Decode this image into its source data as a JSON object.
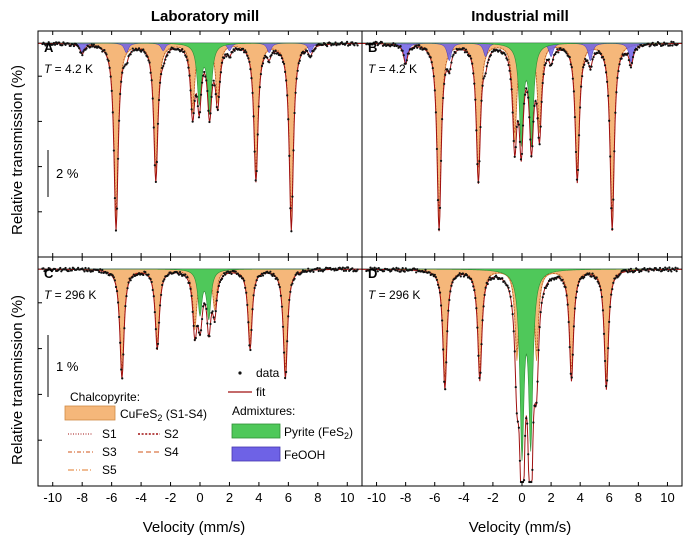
{
  "figure": {
    "col_titles": [
      "Laboratory mill",
      "Industrial mill"
    ],
    "ylabel": "Relative transmission (%)",
    "xlabel": "Velocity (mm/s)",
    "xticks": [
      -10,
      -8,
      -6,
      -4,
      -2,
      0,
      2,
      4,
      6,
      8,
      10
    ],
    "scalebars": [
      "2 %",
      "1 %"
    ],
    "temp_prefix": "T",
    "colors": {
      "chalcopyrite": "#f5b77a",
      "pyrite": "#4fc85a",
      "feooh": "#6e62e6",
      "fit": "#a01010",
      "data": "#111111"
    }
  },
  "legend": {
    "chalcopyrite_title": "Chalcopyrite:",
    "cufes2": "CuFeS",
    "cufes2_sub": "2",
    "cufes2_suffix": " (S1-S4)",
    "s1": "S1",
    "s2": "S2",
    "s3": "S3",
    "s4": "S4",
    "s5": "S5",
    "data": "data",
    "fit": "fit",
    "admixtures_title": "Admixtures:",
    "pyrite": "Pyrite (FeS",
    "pyrite_sub": "2",
    "pyrite_suffix": ")",
    "feooh": "FeOOH"
  },
  "chart_data": [
    {
      "type": "line",
      "panel": "A",
      "temperature": "= 4.2 K",
      "xlim": [
        -11,
        11
      ],
      "chalcopyrite_lines": [
        -5.7,
        -3.0,
        -0.5,
        1.2,
        3.8,
        6.2
      ],
      "chalcopyrite_depth": [
        0.95,
        0.7,
        0.35,
        0.3,
        0.7,
        0.95
      ],
      "pyrite_lines": [
        -0.05,
        0.65
      ],
      "pyrite_depth": [
        0.3,
        0.35
      ],
      "feooh_lines": [
        -8.0,
        -5.0,
        -2.5,
        2.0,
        4.7,
        7.5
      ],
      "feooh_depth": [
        0.05,
        0.05,
        0.04,
        0.04,
        0.05,
        0.05
      ]
    },
    {
      "type": "line",
      "panel": "B",
      "temperature": "= 4.2 K",
      "xlim": [
        -11,
        11
      ],
      "chalcopyrite_lines": [
        -5.7,
        -3.0,
        -0.5,
        1.2,
        3.8,
        6.2
      ],
      "chalcopyrite_depth": [
        0.95,
        0.7,
        0.5,
        0.45,
        0.7,
        0.95
      ],
      "pyrite_lines": [
        -0.05,
        0.65
      ],
      "pyrite_depth": [
        0.5,
        0.5
      ],
      "feooh_lines": [
        -8.0,
        -5.0,
        -2.5,
        2.0,
        4.7,
        7.5
      ],
      "feooh_depth": [
        0.1,
        0.09,
        0.07,
        0.07,
        0.09,
        0.1
      ]
    },
    {
      "type": "line",
      "panel": "C",
      "temperature": "= 296 K",
      "xlim": [
        -11,
        11
      ],
      "chalcopyrite_lines": [
        -5.3,
        -2.9,
        -0.35,
        1.0,
        3.4,
        5.8
      ],
      "chalcopyrite_depth": [
        0.55,
        0.4,
        0.3,
        0.2,
        0.4,
        0.55
      ],
      "pyrite_lines": [
        0.0,
        0.6
      ],
      "pyrite_depth": [
        0.22,
        0.24
      ],
      "feooh_lines": [
        0.1,
        0.6
      ],
      "feooh_depth": [
        0.04,
        0.04
      ]
    },
    {
      "type": "line",
      "panel": "D",
      "temperature": "= 296 K",
      "xlim": [
        -11,
        11
      ],
      "chalcopyrite_lines": [
        -5.3,
        -2.9,
        -0.35,
        1.0,
        3.4,
        5.8
      ],
      "chalcopyrite_depth": [
        0.6,
        0.55,
        0.45,
        0.45,
        0.55,
        0.6
      ],
      "pyrite_lines": [
        0.0,
        0.6
      ],
      "pyrite_depth": [
        0.9,
        0.85
      ],
      "feooh_lines": [
        0.05,
        0.55
      ],
      "feooh_depth": [
        0.4,
        0.4
      ]
    }
  ]
}
